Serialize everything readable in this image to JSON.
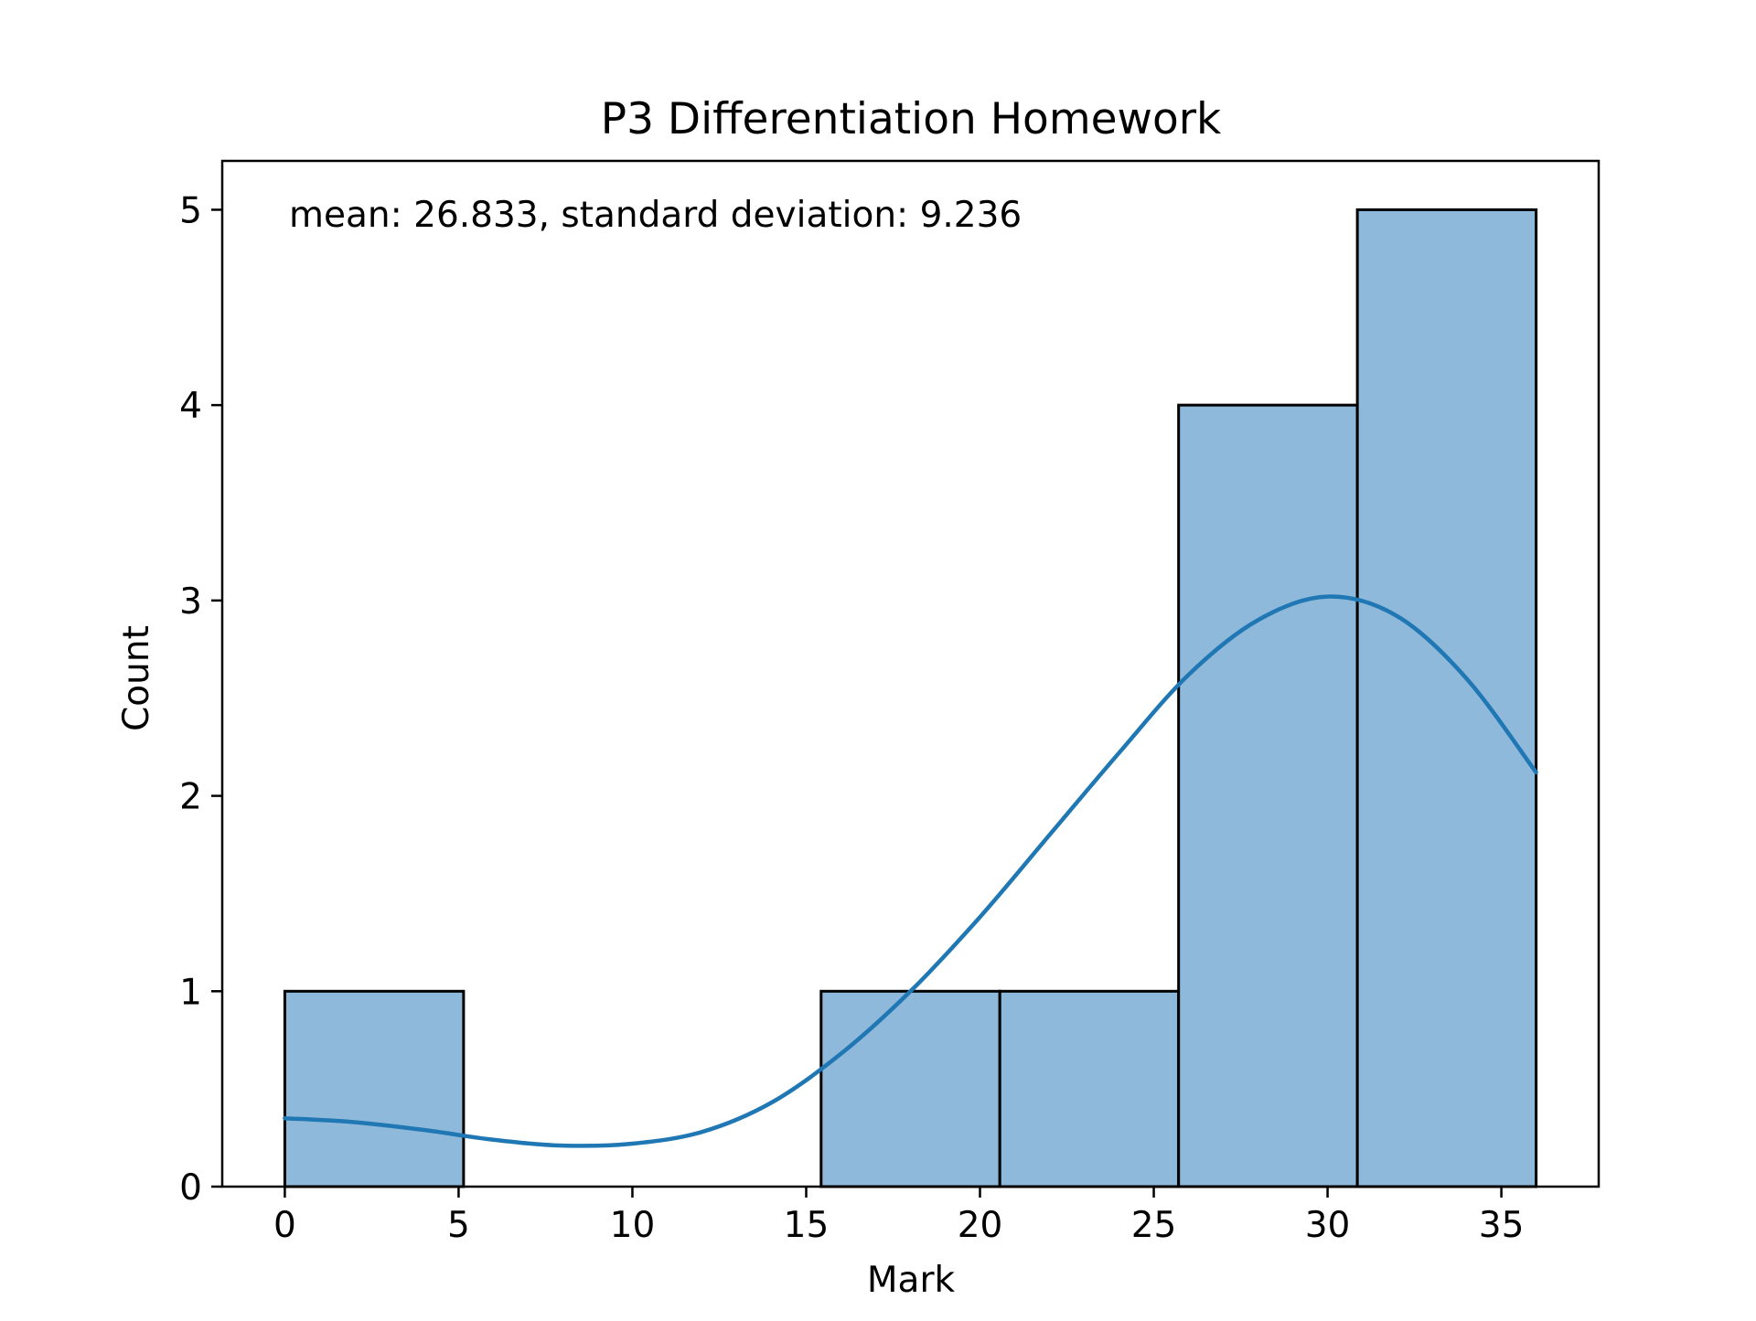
{
  "chart_data": {
    "type": "bar",
    "title": "P3 Differentiation Homework",
    "xlabel": "Mark",
    "ylabel": "Count",
    "annotation": "mean: 26.833, standard deviation: 9.236",
    "bins": [
      {
        "x0": 0.0,
        "x1": 5.143,
        "count": 1
      },
      {
        "x0": 5.143,
        "x1": 10.286,
        "count": 0
      },
      {
        "x0": 10.286,
        "x1": 15.429,
        "count": 0
      },
      {
        "x0": 15.429,
        "x1": 20.571,
        "count": 1
      },
      {
        "x0": 20.571,
        "x1": 25.714,
        "count": 1
      },
      {
        "x0": 25.714,
        "x1": 30.857,
        "count": 4
      },
      {
        "x0": 30.857,
        "x1": 36.0,
        "count": 5
      }
    ],
    "kde": {
      "x": [
        0,
        2,
        4,
        6,
        8,
        10,
        12,
        14,
        16,
        18,
        20,
        22,
        24,
        26,
        28,
        30,
        32,
        34,
        36
      ],
      "y": [
        0.35,
        0.33,
        0.29,
        0.24,
        0.21,
        0.22,
        0.28,
        0.43,
        0.68,
        1.0,
        1.38,
        1.8,
        2.22,
        2.62,
        2.9,
        3.02,
        2.92,
        2.6,
        2.12
      ]
    },
    "xticks": [
      0,
      5,
      10,
      15,
      20,
      25,
      30,
      35
    ],
    "yticks": [
      0,
      1,
      2,
      3,
      4,
      5
    ],
    "xlim": [
      -1.8,
      37.8
    ],
    "ylim": [
      0,
      5.25
    ],
    "grid": false,
    "colors": {
      "bar_fill": "#8fb9da",
      "bar_edge": "#000000",
      "kde_line": "#1f77b4",
      "axes": "#000000"
    }
  }
}
